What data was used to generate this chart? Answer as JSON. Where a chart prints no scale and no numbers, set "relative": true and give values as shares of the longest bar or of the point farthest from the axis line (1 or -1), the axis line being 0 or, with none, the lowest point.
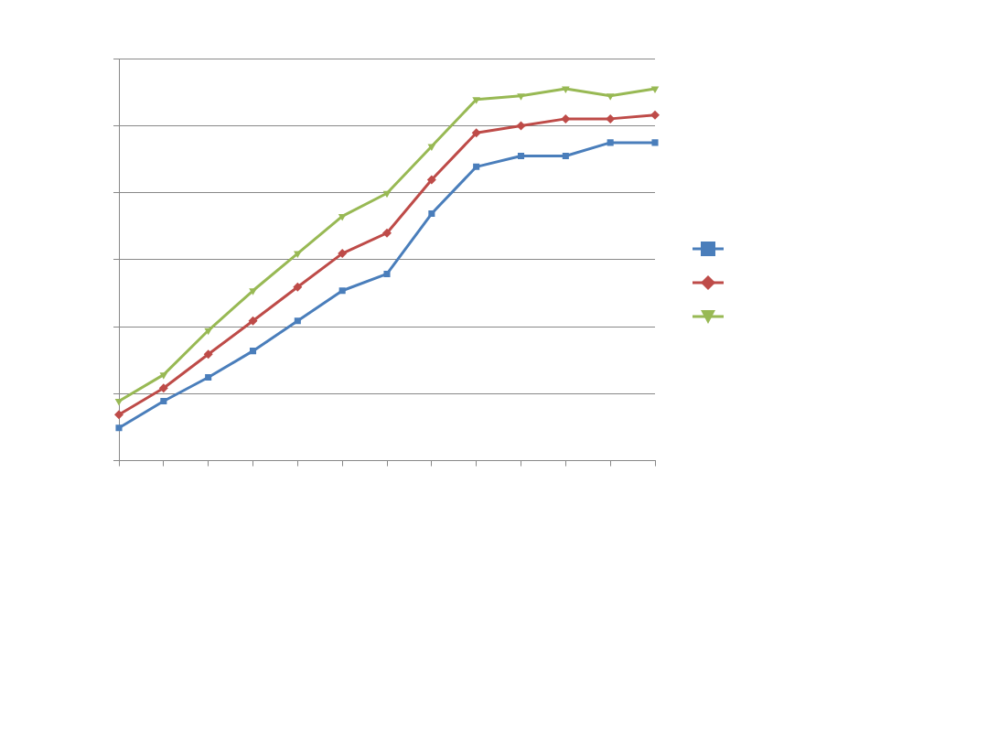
{
  "chart_data": {
    "type": "line",
    "relative": true,
    "grid": "y",
    "line_style": "solid",
    "categories": [
      null,
      null,
      null,
      null,
      null,
      null,
      null,
      null,
      null,
      null,
      null,
      null,
      null
    ],
    "series": [
      {
        "color": "#4a7ebb",
        "marker": "square",
        "values": [
          0.088,
          0.16,
          0.224,
          0.295,
          0.376,
          0.457,
          0.502,
          0.664,
          0.79,
          0.819,
          0.819,
          0.855,
          0.855
        ]
      },
      {
        "color": "#be4b48",
        "marker": "diamond",
        "values": [
          0.124,
          0.195,
          0.286,
          0.376,
          0.467,
          0.557,
          0.612,
          0.755,
          0.881,
          0.9,
          0.919,
          0.919,
          0.929
        ]
      },
      {
        "color": "#98b954",
        "marker": "triangle",
        "values": [
          0.16,
          0.231,
          0.35,
          0.457,
          0.557,
          0.657,
          0.719,
          0.845,
          0.971,
          0.981,
          1,
          0.981,
          1
        ]
      }
    ]
  }
}
